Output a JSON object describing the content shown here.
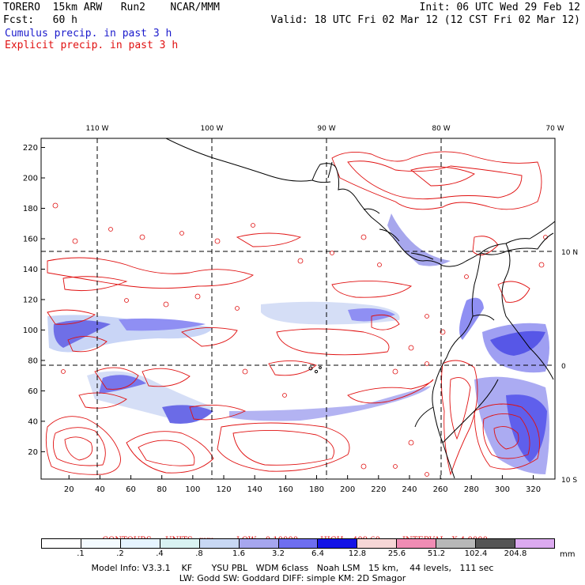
{
  "header": {
    "title_left": "TORERO  15km ARW   Run2    NCAR/MMM",
    "init": "Init: 06 UTC Wed 29 Feb 12",
    "fcst": "Fcst:   60 h",
    "valid": "Valid: 18 UTC Fri 02 Mar 12 (12 CST Fri 02 Mar 12)",
    "field_cumulus": "Cumulus precip. in past 3 h",
    "field_explicit": "Explicit precip. in past 3 h"
  },
  "map": {
    "top_lon_labels": [
      "110 W",
      "100 W",
      "90 W",
      "80 W",
      "70 W"
    ],
    "right_lat_labels": [
      "10 N",
      "0",
      "10 S"
    ],
    "y_ticks": [
      "20",
      "40",
      "60",
      "80",
      "100",
      "120",
      "140",
      "160",
      "180",
      "200",
      "220"
    ],
    "x_ticks": [
      "20",
      "40",
      "60",
      "80",
      "100",
      "120",
      "140",
      "160",
      "180",
      "200",
      "220",
      "240",
      "260",
      "280",
      "300",
      "320"
    ],
    "y_range": [
      2,
      226
    ],
    "x_range": [
      2,
      334
    ],
    "contour_color": "#e01010",
    "coast_color": "#000000"
  },
  "contours": {
    "label": "CONTOURS:",
    "units": "UNITS=mm",
    "low": "LOW= 0.10000",
    "high": "HIGH= 409.60",
    "interval": "INTERVAL=X 4.0000"
  },
  "legend": {
    "values": [
      ".1",
      ".2",
      ".4",
      ".8",
      "1.6",
      "3.2",
      "6.4",
      "12.8",
      "25.6",
      "51.2",
      "102.4",
      "204.8"
    ],
    "colors": [
      "#ffffff",
      "#f4fbff",
      "#e6f4ff",
      "#d9f2f2",
      "#c8d8f4",
      "#a6a6ee",
      "#6e6ef0",
      "#1414e6",
      "#f6d6d6",
      "#f08cb4",
      "#b8b8b8",
      "#555555",
      "#dcaaf0"
    ],
    "unit": "mm"
  },
  "model_info": {
    "line1": "Model Info: V3.3.1    KF       YSU PBL   WDM 6class   Noah LSM   15 km,    44 levels,   111 sec",
    "line2": "LW: Godd SW: Goddard DIFF: simple KM: 2D Smagor"
  }
}
